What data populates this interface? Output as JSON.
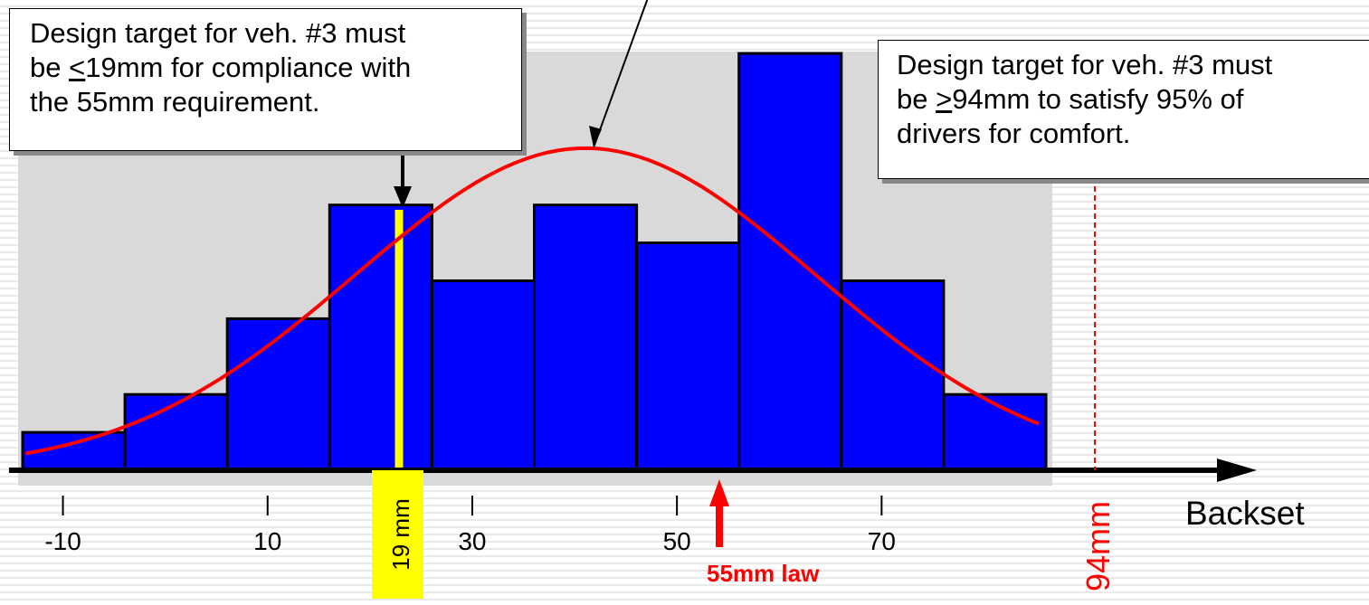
{
  "chart_data": {
    "type": "bar",
    "xlabel": "Backset",
    "ylabel": "",
    "xlim": [
      -15,
      85
    ],
    "ylim": [
      0,
      11
    ],
    "tick_labels": [
      "-10",
      "10",
      "30",
      "50",
      "70"
    ],
    "tick_values": [
      -10,
      10,
      30,
      50,
      70
    ],
    "bins": [
      {
        "from": -15,
        "to": -5,
        "count": 1
      },
      {
        "from": -5,
        "to": 5,
        "count": 2
      },
      {
        "from": 5,
        "to": 15,
        "count": 4
      },
      {
        "from": 15,
        "to": 25,
        "count": 7
      },
      {
        "from": 25,
        "to": 35,
        "count": 5
      },
      {
        "from": 35,
        "to": 45,
        "count": 7
      },
      {
        "from": 45,
        "to": 55,
        "count": 6
      },
      {
        "from": 55,
        "to": 65,
        "count": 11
      },
      {
        "from": 65,
        "to": 75,
        "count": 5
      },
      {
        "from": 75,
        "to": 85,
        "count": 2
      }
    ],
    "normal_curve": {
      "mean": 40,
      "sd": 22.5,
      "peak_count": 8.5
    },
    "markers": [
      {
        "value": 19,
        "label": "19 mm",
        "color": "#ffff00"
      },
      {
        "value": 55,
        "label": "55mm law",
        "color": "#ff0000"
      },
      {
        "value": 94,
        "label": "94mm",
        "color": "#ff0000"
      }
    ],
    "grid": false,
    "legend": "none"
  },
  "colors": {
    "bar_fill": "#0000ff",
    "curve": "#ff0000",
    "plot_bg": "#d9d9d9",
    "marker_19": "#ffff00",
    "law": "#ff0000"
  },
  "callouts": {
    "left": {
      "l1": "Design target for veh. #3 must",
      "l2a": "be ",
      "l2u": "<",
      "l2b": "19mm for compliance with",
      "l3": "the 55mm requirement."
    },
    "right": {
      "l1": "Design target for veh. #3 must",
      "l2a": "be ",
      "l2u": ">",
      "l2b": "94mm to satisfy 95% of",
      "l3": "drivers for comfort."
    }
  }
}
